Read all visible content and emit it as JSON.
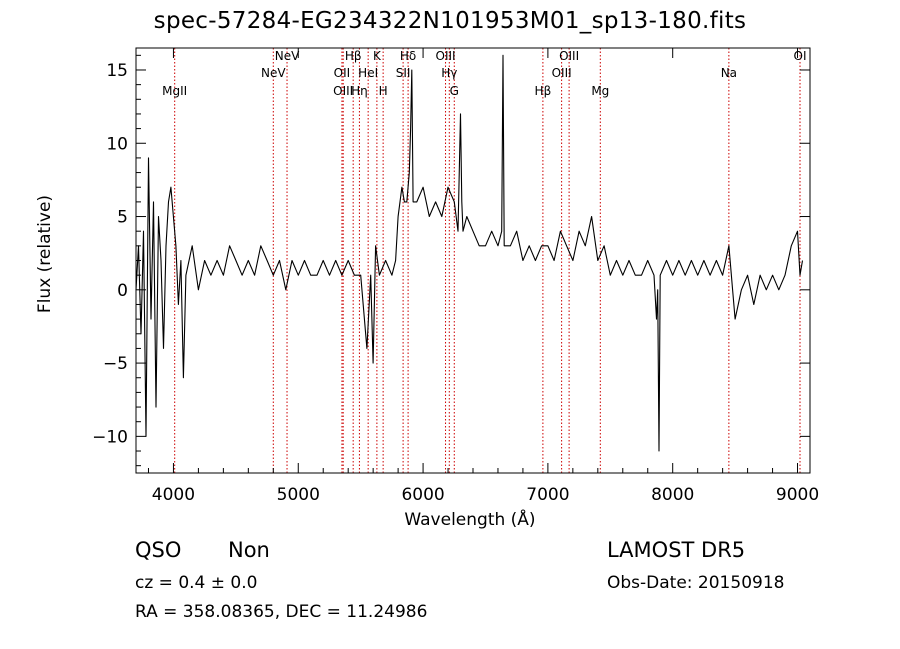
{
  "header": {
    "title": "spec-57284-EG234322N101953M01_sp13-180.fits"
  },
  "chart_data": {
    "type": "line",
    "title": "spec-57284-EG234322N101953M01_sp13-180.fits",
    "xlabel": "Wavelength (Å)",
    "ylabel": "Flux (relative)",
    "xlim": [
      3700,
      9100
    ],
    "ylim": [
      -12.5,
      16.5
    ],
    "x_ticks": [
      4000,
      5000,
      6000,
      7000,
      8000,
      9000
    ],
    "x_tick_labels": [
      "4000",
      "5000",
      "6000",
      "7000",
      "8000",
      "9000"
    ],
    "y_ticks": [
      -10,
      -5,
      0,
      5,
      10,
      15
    ],
    "y_tick_labels": [
      "−10",
      "−5",
      "0",
      "5",
      "10",
      "15"
    ],
    "grid": false,
    "legend": "none",
    "series": [
      {
        "color": "#000000",
        "x": [
          3700,
          3720,
          3740,
          3760,
          3780,
          3800,
          3820,
          3840,
          3860,
          3880,
          3900,
          3920,
          3940,
          3960,
          3980,
          4000,
          4020,
          4040,
          4060,
          4080,
          4100,
          4150,
          4200,
          4250,
          4300,
          4350,
          4400,
          4450,
          4500,
          4550,
          4600,
          4650,
          4700,
          4750,
          4800,
          4850,
          4900,
          4950,
          5000,
          5050,
          5100,
          5150,
          5200,
          5250,
          5300,
          5350,
          5400,
          5450,
          5500,
          5550,
          5580,
          5600,
          5620,
          5650,
          5700,
          5750,
          5780,
          5800,
          5830,
          5850,
          5870,
          5890,
          5900,
          5910,
          5920,
          5950,
          6000,
          6050,
          6100,
          6150,
          6200,
          6250,
          6280,
          6300,
          6310,
          6320,
          6350,
          6400,
          6450,
          6500,
          6550,
          6600,
          6630,
          6640,
          6650,
          6700,
          6750,
          6800,
          6850,
          6900,
          6950,
          7000,
          7050,
          7100,
          7150,
          7200,
          7250,
          7300,
          7350,
          7400,
          7450,
          7500,
          7550,
          7600,
          7650,
          7700,
          7750,
          7800,
          7850,
          7870,
          7880,
          7890,
          7900,
          7950,
          8000,
          8050,
          8100,
          8150,
          8200,
          8250,
          8300,
          8350,
          8400,
          8450,
          8480,
          8500,
          8550,
          8600,
          8650,
          8700,
          8750,
          8800,
          8850,
          8900,
          8950,
          9000,
          9020,
          9040
        ],
        "y": [
          0,
          3,
          -3,
          4,
          -10,
          9,
          -2,
          6,
          -8,
          5,
          2,
          -4,
          3,
          6,
          7,
          5,
          3,
          -1,
          2,
          -6,
          1,
          3,
          0,
          2,
          1,
          2,
          1,
          3,
          2,
          1,
          2,
          1,
          3,
          2,
          1,
          2,
          0,
          2,
          1,
          2,
          1,
          1,
          2,
          1,
          2,
          1,
          2,
          1,
          1,
          -4,
          1,
          -5,
          3,
          1,
          2,
          1,
          2,
          5,
          7,
          6,
          6,
          8,
          11,
          15,
          6,
          6,
          7,
          5,
          6,
          5,
          7,
          6,
          4,
          12,
          6,
          4,
          5,
          4,
          3,
          3,
          4,
          3,
          4,
          16,
          3,
          3,
          4,
          2,
          3,
          2,
          3,
          3,
          2,
          4,
          3,
          2,
          4,
          3,
          5,
          2,
          3,
          1,
          2,
          1,
          2,
          1,
          1,
          2,
          1,
          -2,
          0,
          -11,
          1,
          2,
          1,
          2,
          1,
          2,
          1,
          2,
          1,
          2,
          1,
          3,
          0,
          -2,
          0,
          1,
          -1,
          1,
          0,
          1,
          0,
          1,
          3,
          4,
          1,
          2
        ]
      }
    ],
    "lines": [
      {
        "label": "MgII",
        "x": 4010,
        "row": 2
      },
      {
        "label": "NeV",
        "x": 4800,
        "row": 1
      },
      {
        "label": "NeV",
        "x": 4910,
        "row": 0
      },
      {
        "label": "OII",
        "x": 5350,
        "row": 1
      },
      {
        "label": "OIII",
        "x": 5360,
        "row": 2
      },
      {
        "label": "Hβ",
        "x": 5440,
        "row": 0
      },
      {
        "label": "Hη",
        "x": 5490,
        "row": 2
      },
      {
        "label": "HeI",
        "x": 5560,
        "row": 1
      },
      {
        "label": "K",
        "x": 5630,
        "row": 0
      },
      {
        "label": "H",
        "x": 5680,
        "row": 2
      },
      {
        "label": "SII",
        "x": 5840,
        "row": 1
      },
      {
        "label": "Hδ",
        "x": 5880,
        "row": 0
      },
      {
        "label": "OIII",
        "x": 6180,
        "row": 0
      },
      {
        "label": "Hγ",
        "x": 6210,
        "row": 1
      },
      {
        "label": "G",
        "x": 6250,
        "row": 2
      },
      {
        "label": "Hβ",
        "x": 6960,
        "row": 2
      },
      {
        "label": "OIII",
        "x": 7110,
        "row": 1
      },
      {
        "label": "OIII",
        "x": 7170,
        "row": 0
      },
      {
        "label": "Mg",
        "x": 7420,
        "row": 2
      },
      {
        "label": "Na",
        "x": 8450,
        "row": 1
      },
      {
        "label": "OI",
        "x": 9020,
        "row": 0
      }
    ],
    "line_color": "#cc0000"
  },
  "footer": {
    "object_class": "QSO",
    "subclass": "Non",
    "survey": "LAMOST DR5",
    "cz": "cz = 0.4 ± 0.0",
    "obs_date": "Obs-Date: 20150918",
    "radec": "RA = 358.08365, DEC =  11.24986"
  }
}
